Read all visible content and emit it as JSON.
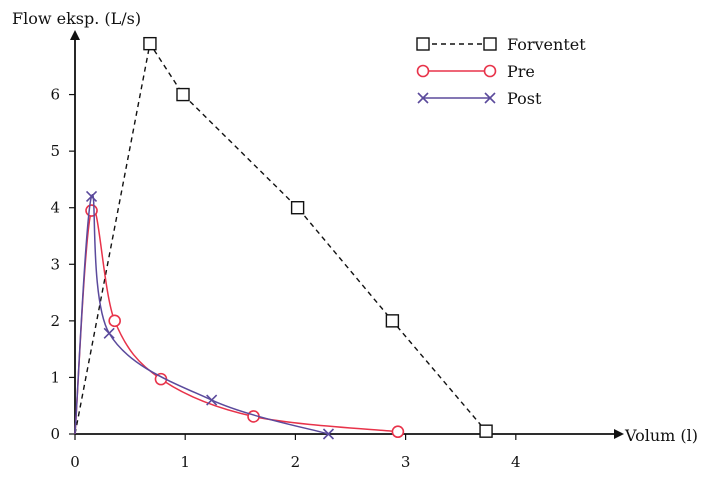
{
  "chart_data": {
    "type": "line",
    "xlabel": "Volum (l)",
    "ylabel": "Flow eksp. (L/s)",
    "xticks": [
      0,
      1,
      2,
      3,
      4
    ],
    "yticks": [
      0,
      1,
      2,
      3,
      4,
      5,
      6
    ],
    "xlim": [
      0,
      4.9
    ],
    "ylim": [
      0,
      7.0
    ],
    "grid": false,
    "legend_position": "top-right",
    "series": [
      {
        "name": "Forventet",
        "marker": "square",
        "line_style": "dashed",
        "color": "#111111",
        "points": [
          [
            0,
            0
          ],
          [
            0.68,
            6.9
          ],
          [
            0.98,
            6.0
          ],
          [
            2.02,
            4.0
          ],
          [
            2.88,
            2.0
          ],
          [
            3.73,
            0.05
          ]
        ]
      },
      {
        "name": "Pre",
        "marker": "circle",
        "line_style": "solid",
        "color": "#e8334a",
        "points": [
          [
            0,
            0
          ],
          [
            0.15,
            3.95
          ],
          [
            0.36,
            2.0
          ],
          [
            0.78,
            0.97
          ],
          [
            1.62,
            0.31
          ],
          [
            2.93,
            0.04
          ]
        ]
      },
      {
        "name": "Post",
        "marker": "x",
        "line_style": "solid",
        "color": "#5b4a9c",
        "points": [
          [
            0,
            0
          ],
          [
            0.15,
            4.2
          ],
          [
            0.31,
            1.78
          ],
          [
            1.24,
            0.6
          ],
          [
            2.3,
            0.0
          ]
        ]
      }
    ]
  }
}
